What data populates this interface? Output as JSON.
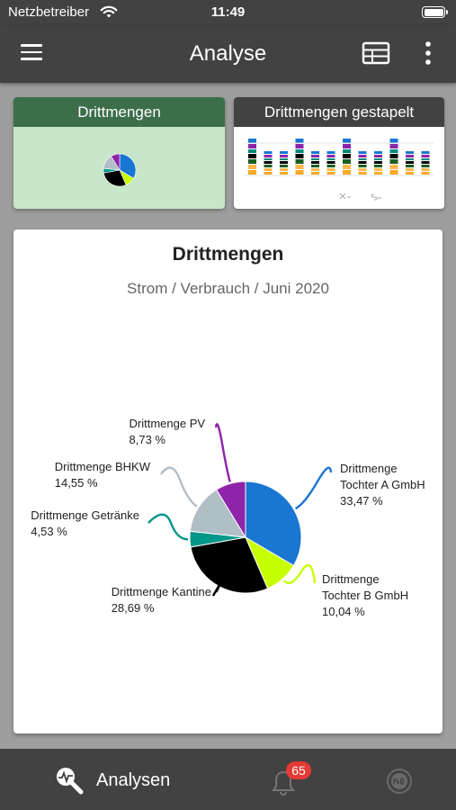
{
  "status_bar": {
    "carrier": "Netzbetreiber",
    "time": "11:49"
  },
  "app_bar": {
    "title": "Analyse"
  },
  "cards": [
    {
      "label": "Drittmengen",
      "selected": true
    },
    {
      "label": "Drittmengen gestapelt",
      "selected": false
    }
  ],
  "main_chart": {
    "title": "Drittmengen",
    "subtitle": "Strom / Verbrauch / Juni 2020"
  },
  "chart_data": {
    "type": "pie",
    "title": "Drittmengen",
    "subtitle": "Strom / Verbrauch / Juni 2020",
    "unit": "%",
    "slices": [
      {
        "label_lines": [
          "Drittmenge",
          "Tochter A GmbH"
        ],
        "value": 33.47,
        "value_label": "33,47 %",
        "color": "#1976d2"
      },
      {
        "label_lines": [
          "Drittmenge",
          "Tochter B GmbH"
        ],
        "value": 10.04,
        "value_label": "10,04 %",
        "color": "#c6ff00"
      },
      {
        "label_lines": [
          "Drittmenge Kantine"
        ],
        "value": 28.69,
        "value_label": "28,69 %",
        "color": "#000000"
      },
      {
        "label_lines": [
          "Drittmenge Getränke"
        ],
        "value": 4.53,
        "value_label": "4,53 %",
        "color": "#009688"
      },
      {
        "label_lines": [
          "Drittmenge BHKW"
        ],
        "value": 14.55,
        "value_label": "14,55 %",
        "color": "#b0bec5"
      },
      {
        "label_lines": [
          "Drittmenge PV"
        ],
        "value": 8.73,
        "value_label": "8,73 %",
        "color": "#8e24aa"
      }
    ]
  },
  "bottom_nav": {
    "analysen_label": "Analysen",
    "alarm_count": "65"
  },
  "colors": {
    "bar": "#424242",
    "selected_card_header": "#3c6e4a",
    "selected_card_bg": "#c8e6c9",
    "badge": "#e53935"
  },
  "icons": {
    "menu": "hamburger-icon",
    "table": "table-icon",
    "more": "more-vertical-icon",
    "analysen": "analysis-search-icon",
    "alarm": "bell-icon",
    "iso": "iso-icon"
  }
}
